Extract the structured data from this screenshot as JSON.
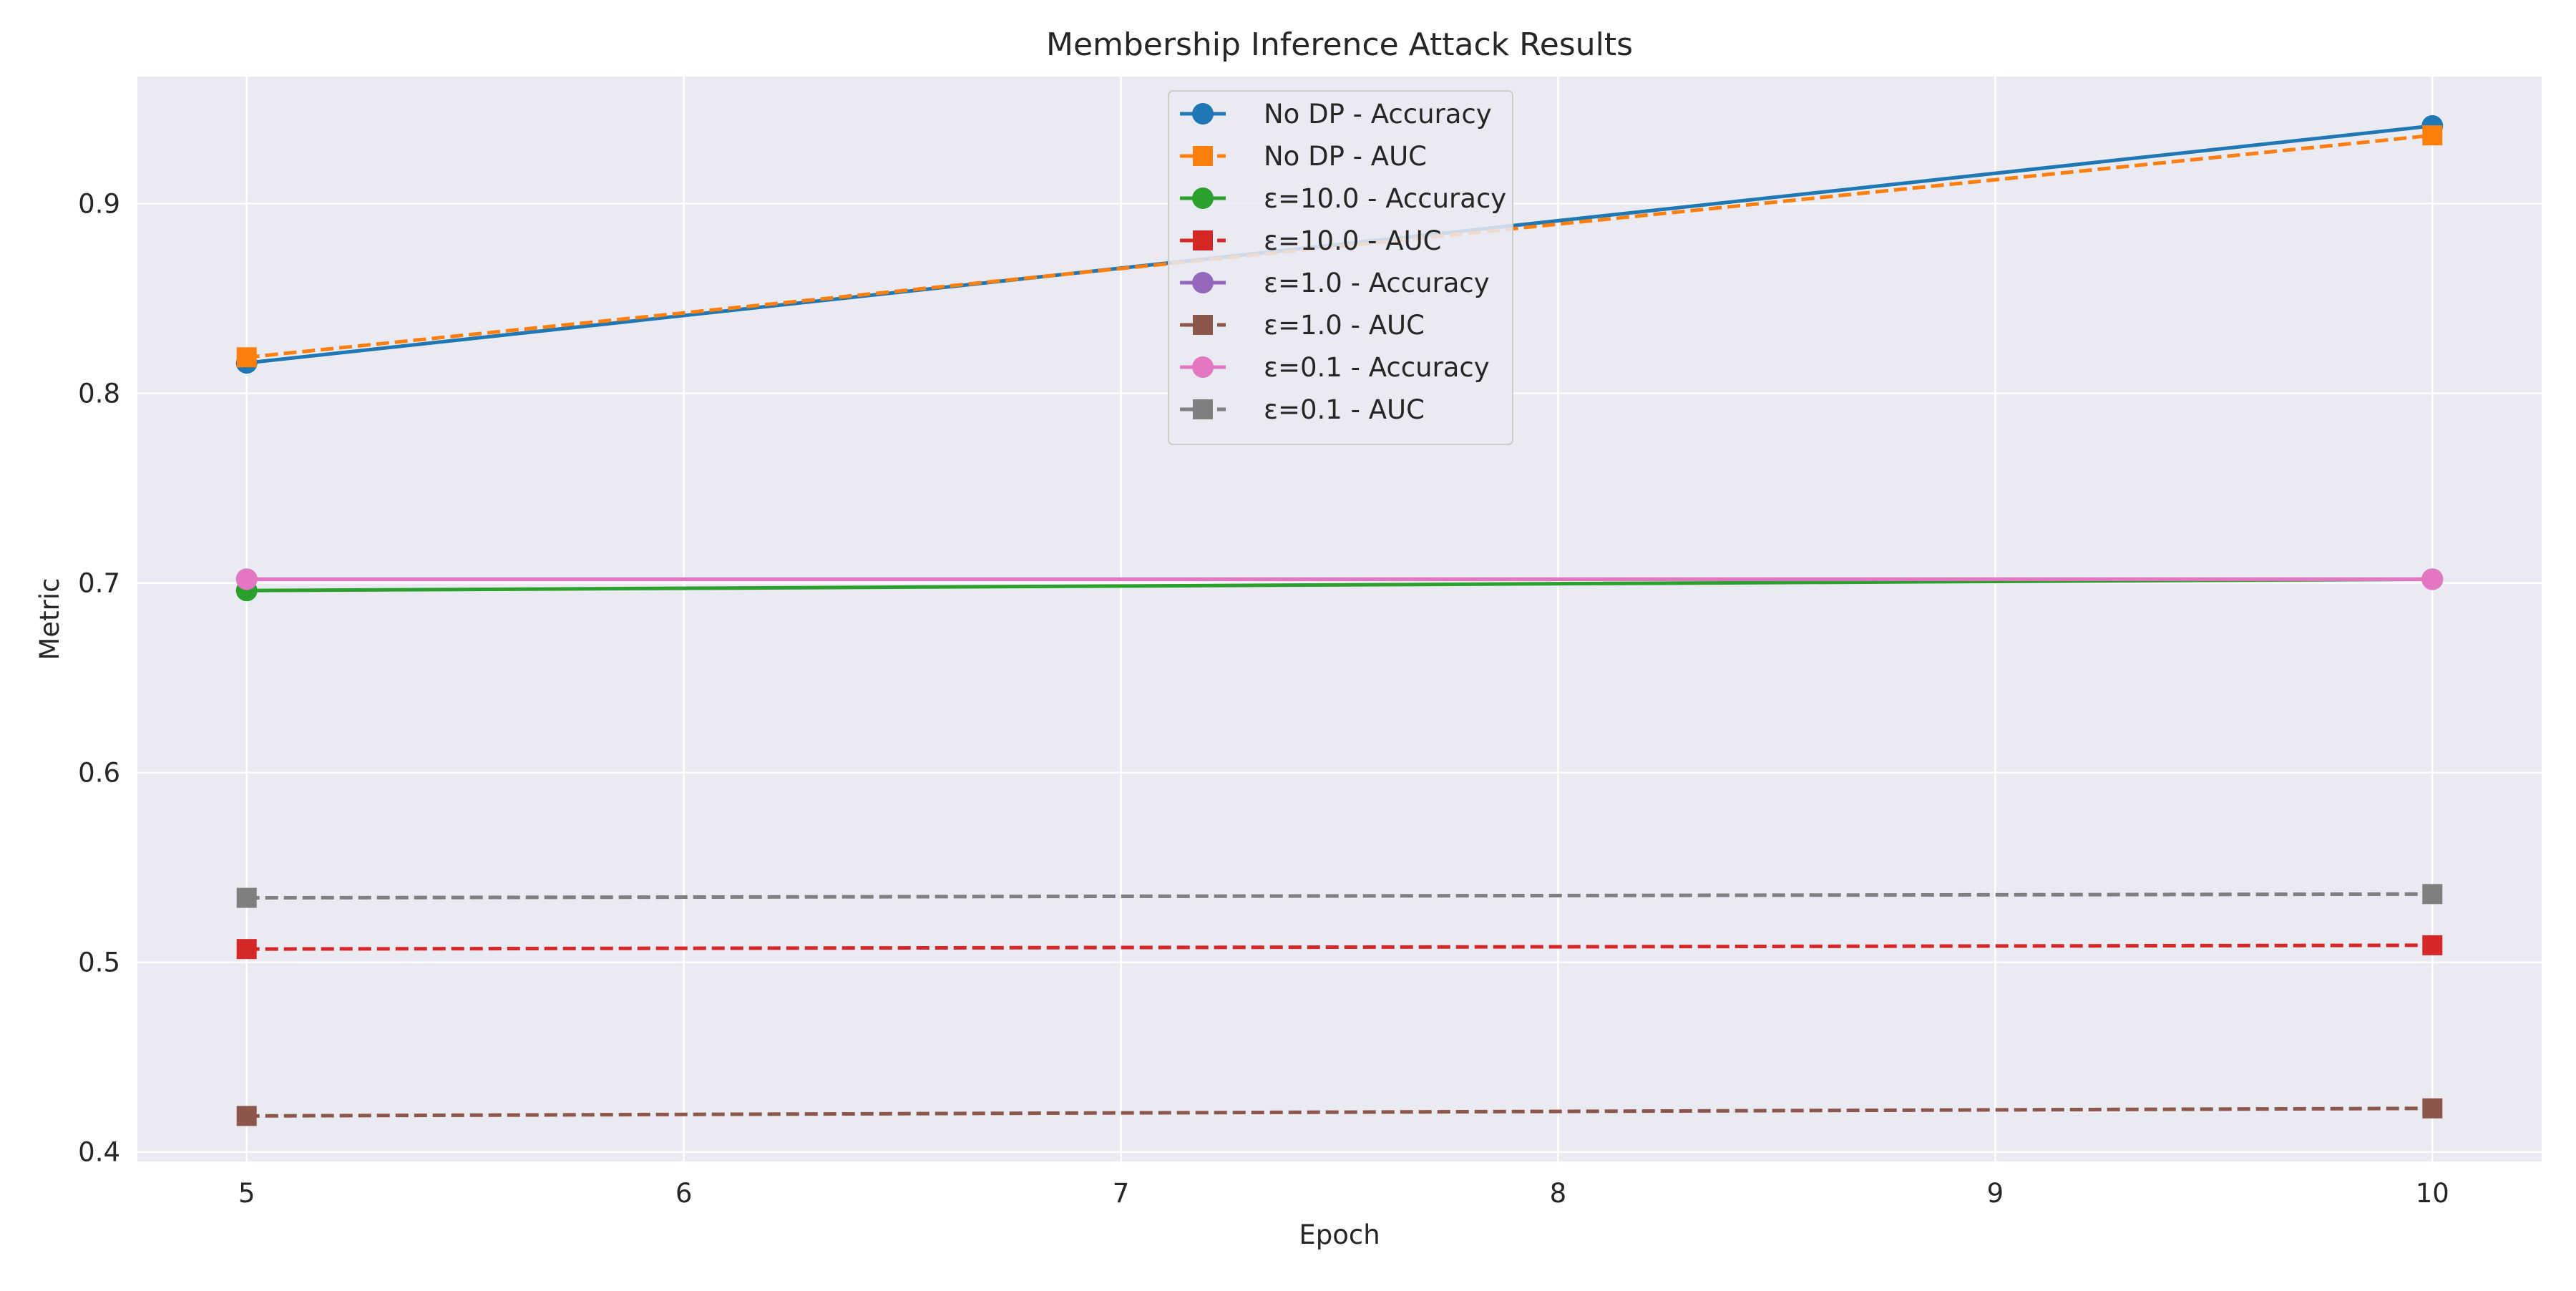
{
  "chart_data": {
    "type": "line",
    "title": "Membership Inference Attack Results",
    "xlabel": "Epoch",
    "ylabel": "Metric",
    "x": [
      5,
      10
    ],
    "xlim": [
      4.75,
      10.25
    ],
    "ylim": [
      0.395,
      0.967
    ],
    "xticks": [
      5,
      6,
      7,
      8,
      9,
      10
    ],
    "yticks": [
      0.4,
      0.5,
      0.6,
      0.7,
      0.8,
      0.9
    ],
    "grid": true,
    "legend_position": "upper center",
    "series": [
      {
        "name": "No DP - Accuracy",
        "values": [
          0.816,
          0.941
        ],
        "color": "#1f77b4",
        "linestyle": "solid",
        "marker": "circle"
      },
      {
        "name": "No DP - AUC",
        "values": [
          0.819,
          0.936
        ],
        "color": "#ff7f0e",
        "linestyle": "dashed",
        "marker": "square"
      },
      {
        "name": "ε=10.0 - Accuracy",
        "values": [
          0.696,
          0.702
        ],
        "color": "#2ca02c",
        "linestyle": "solid",
        "marker": "circle"
      },
      {
        "name": "ε=10.0 - AUC",
        "values": [
          0.507,
          0.509
        ],
        "color": "#d62728",
        "linestyle": "dashed",
        "marker": "square"
      },
      {
        "name": "ε=1.0 - Accuracy",
        "values": [
          0.702,
          0.702
        ],
        "color": "#9467bd",
        "linestyle": "solid",
        "marker": "circle"
      },
      {
        "name": "ε=1.0 - AUC",
        "values": [
          0.419,
          0.423
        ],
        "color": "#8c564b",
        "linestyle": "dashed",
        "marker": "square"
      },
      {
        "name": "ε=0.1 - Accuracy",
        "values": [
          0.702,
          0.702
        ],
        "color": "#e377c2",
        "linestyle": "solid",
        "marker": "circle"
      },
      {
        "name": "ε=0.1 - AUC",
        "values": [
          0.534,
          0.536
        ],
        "color": "#7f7f7f",
        "linestyle": "dashed",
        "marker": "square"
      }
    ]
  },
  "colors": {
    "plot_background": "#eaeaf2",
    "grid": "#ffffff",
    "legend_background": "#eaeaf2",
    "legend_border": "#cccccc"
  }
}
